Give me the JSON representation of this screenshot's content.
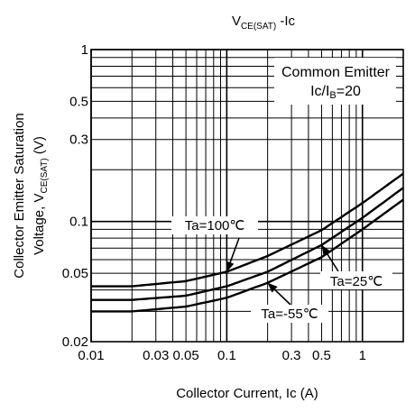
{
  "chart_data": {
    "type": "line",
    "title": {
      "main": "V",
      "sub": "CE(SAT)",
      "rest": " -Ic"
    },
    "xlabel": "Collector Current, Ic (A)",
    "ylabel": {
      "line1": "Collector Emitter Saturation",
      "line2_main": "Voltage, V",
      "line2_sub": "CE(SAT)",
      "line2_rest": " (V)"
    },
    "x_scale": "log",
    "y_scale": "log",
    "xlim": [
      0.01,
      2
    ],
    "ylim": [
      0.02,
      1
    ],
    "grid": true,
    "x_major_ticks": [
      0.01,
      0.1,
      1
    ],
    "x_minor_ticks": [
      0.02,
      0.03,
      0.04,
      0.05,
      0.06,
      0.07,
      0.08,
      0.09,
      0.2,
      0.3,
      0.4,
      0.5,
      0.6,
      0.7,
      0.8,
      0.9,
      2
    ],
    "y_major_ticks": [
      0.1,
      1
    ],
    "y_minor_ticks": [
      0.03,
      0.04,
      0.05,
      0.06,
      0.07,
      0.08,
      0.09,
      0.2,
      0.3,
      0.4,
      0.5,
      0.6,
      0.7,
      0.8,
      0.9
    ],
    "x_tick_labels": [
      {
        "value": 0.01,
        "text": "0.01"
      },
      {
        "value": 0.03,
        "text": "0.03"
      },
      {
        "value": 0.05,
        "text": "0.05"
      },
      {
        "value": 0.1,
        "text": "0.1"
      },
      {
        "value": 0.3,
        "text": "0.3"
      },
      {
        "value": 0.5,
        "text": "0.5"
      },
      {
        "value": 1,
        "text": "1"
      }
    ],
    "y_tick_labels": [
      {
        "value": 0.02,
        "text": "0.02"
      },
      {
        "value": 0.05,
        "text": "0.05"
      },
      {
        "value": 0.1,
        "text": "0.1"
      },
      {
        "value": 0.3,
        "text": "0.3"
      },
      {
        "value": 0.5,
        "text": "0.5"
      },
      {
        "value": 1,
        "text": "1"
      }
    ],
    "condition_box": {
      "line1": "Common Emitter",
      "line2": "Ic/IB=20"
    },
    "series": [
      {
        "name": "Ta=100℃",
        "x": [
          0.01,
          0.02,
          0.05,
          0.1,
          0.2,
          0.5,
          1,
          2
        ],
        "y": [
          0.042,
          0.042,
          0.045,
          0.051,
          0.063,
          0.089,
          0.128,
          0.19
        ]
      },
      {
        "name": "Ta=25℃",
        "x": [
          0.01,
          0.02,
          0.05,
          0.1,
          0.2,
          0.5,
          1,
          2
        ],
        "y": [
          0.035,
          0.035,
          0.037,
          0.042,
          0.051,
          0.073,
          0.105,
          0.157
        ]
      },
      {
        "name": "Ta=-55℃",
        "x": [
          0.01,
          0.02,
          0.05,
          0.1,
          0.2,
          0.5,
          1,
          2
        ],
        "y": [
          0.03,
          0.03,
          0.032,
          0.036,
          0.044,
          0.062,
          0.09,
          0.134
        ]
      }
    ],
    "annotations": [
      {
        "text": "Ta=100℃",
        "arrow_to": [
          0.1,
          0.051
        ]
      },
      {
        "text": "Ta=25℃",
        "arrow_to": [
          0.5,
          0.073
        ]
      },
      {
        "text": "Ta=-55℃",
        "arrow_to": [
          0.2,
          0.044
        ]
      }
    ]
  }
}
